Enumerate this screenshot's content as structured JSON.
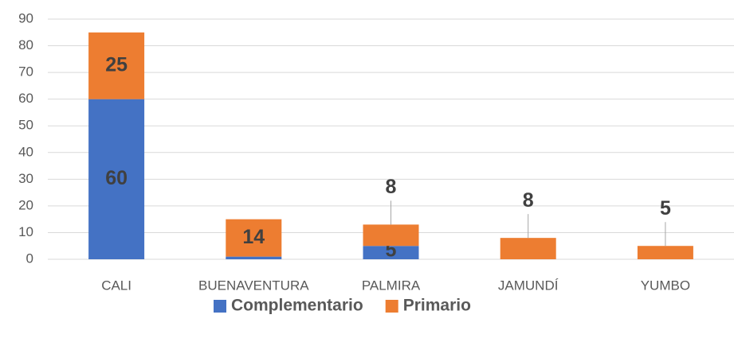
{
  "chart_data": {
    "type": "stacked_bar",
    "categories": [
      "CALI",
      "BUENAVENTURA",
      "PALMIRA",
      "JAMUNDÍ",
      "YUMBO"
    ],
    "series": [
      {
        "name": "Complementario",
        "color": "#4472c4",
        "values": [
          60,
          1,
          5,
          null,
          null
        ]
      },
      {
        "name": "Primario",
        "color": "#ed7d31",
        "values": [
          25,
          14,
          8,
          8,
          5
        ]
      }
    ],
    "ylim": [
      0,
      90
    ],
    "yticks": [
      0,
      10,
      20,
      30,
      40,
      50,
      60,
      70,
      80,
      90
    ],
    "grid": true,
    "legend": "bottom"
  }
}
